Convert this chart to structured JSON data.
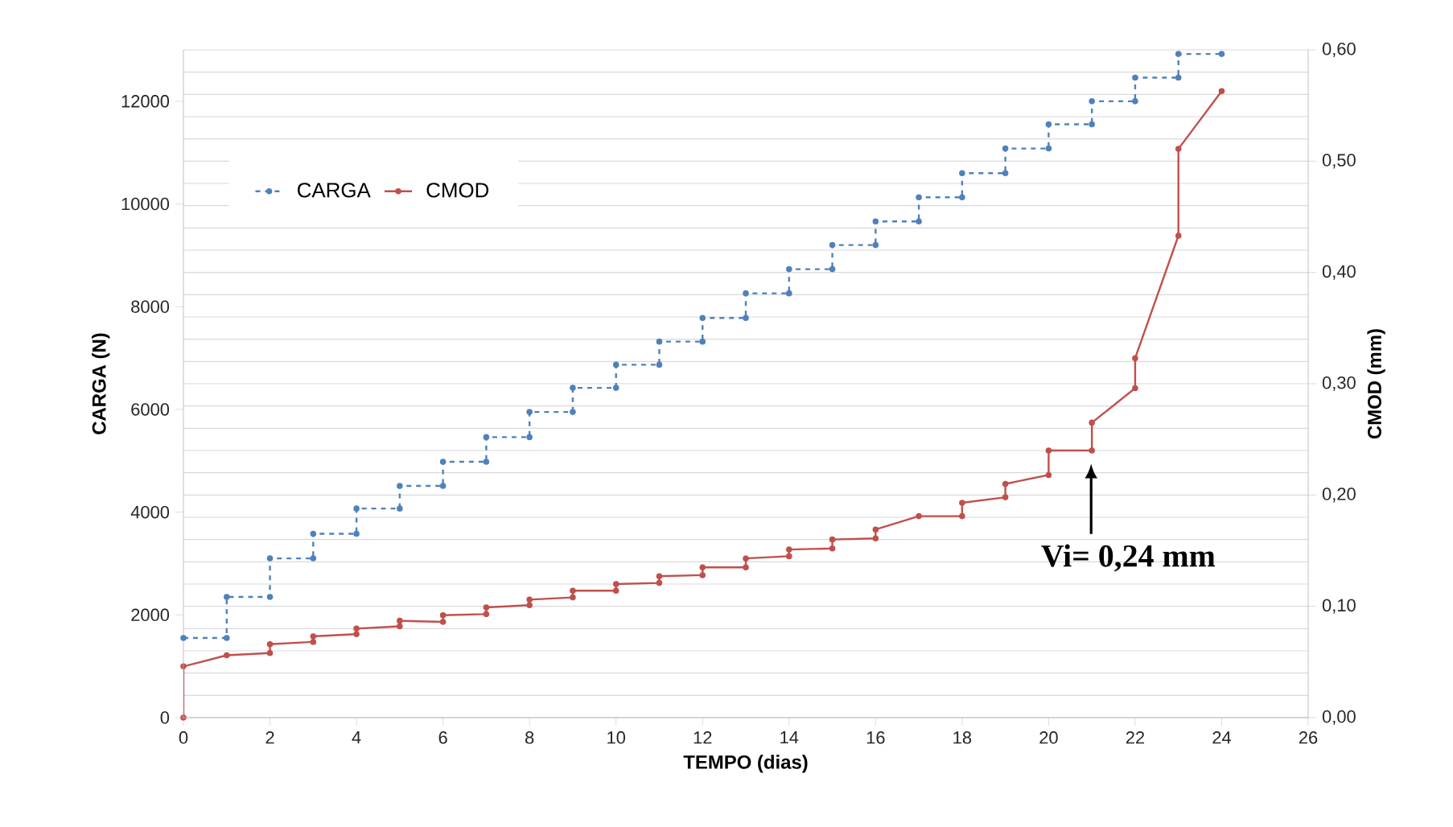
{
  "chart_data": {
    "type": "line",
    "xlabel": "TEMPO (dias)",
    "ylabel": "CARGA (N)",
    "y2label": "CMOD (mm)",
    "xlim": [
      0,
      26
    ],
    "xticks": [
      0,
      2,
      4,
      6,
      8,
      10,
      12,
      14,
      16,
      18,
      20,
      22,
      24,
      26
    ],
    "ylim": [
      0,
      13000
    ],
    "yticks": [
      0,
      2000,
      4000,
      6000,
      8000,
      10000,
      12000
    ],
    "y2lim": [
      0,
      0.6
    ],
    "y2ticks": [
      {
        "value": 0,
        "label": "0,00"
      },
      {
        "value": 0.1,
        "label": "0,10"
      },
      {
        "value": 0.2,
        "label": "0,20"
      },
      {
        "value": 0.3,
        "label": "0,30"
      },
      {
        "value": 0.4,
        "label": "0,40"
      },
      {
        "value": 0.5,
        "label": "0,50"
      },
      {
        "value": 0.6,
        "label": "0,60"
      }
    ],
    "grid": "y",
    "legend": "top left",
    "marker": "circle",
    "series": [
      {
        "name": "CARGA",
        "color": "#4f81bd",
        "line_style": "dashed",
        "x": [
          0,
          1,
          1,
          2,
          2,
          3,
          3,
          4,
          4,
          5,
          5,
          6,
          6,
          7,
          7,
          8,
          8,
          9,
          9,
          10,
          10,
          11,
          11,
          12,
          12,
          13,
          13,
          14,
          14,
          15,
          15,
          16,
          16,
          17,
          17,
          18,
          18,
          19,
          19,
          20,
          20,
          21,
          21,
          22,
          22,
          23,
          23,
          24
        ],
        "values": [
          1550,
          1550,
          2350,
          2350,
          3100,
          3100,
          3580,
          3580,
          4070,
          4070,
          4510,
          4510,
          4980,
          4980,
          5460,
          5460,
          5950,
          5950,
          6420,
          6420,
          6870,
          6870,
          7320,
          7320,
          7780,
          7780,
          8260,
          8260,
          8730,
          8730,
          9200,
          9200,
          9660,
          9660,
          10130,
          10130,
          10600,
          10600,
          11080,
          11080,
          11550,
          11550,
          12000,
          12000,
          12460,
          12460,
          12920,
          12920
        ]
      },
      {
        "name": "CMOD",
        "color": "#c0504d",
        "line_style": "solid",
        "axis": "y2",
        "x": [
          0,
          0,
          1,
          2,
          2,
          3,
          3,
          4,
          4,
          5,
          5,
          6,
          6,
          7,
          7,
          8,
          8,
          9,
          9,
          10,
          10,
          11,
          11,
          12,
          12,
          13,
          13,
          14,
          14,
          15,
          15,
          16,
          16,
          17,
          18,
          18,
          19,
          19,
          20,
          20,
          21,
          21,
          22,
          22,
          23,
          23,
          24
        ],
        "values": [
          0,
          0.046,
          0.056,
          0.058,
          0.066,
          0.068,
          0.073,
          0.075,
          0.08,
          0.082,
          0.087,
          0.086,
          0.092,
          0.093,
          0.099,
          0.101,
          0.106,
          0.108,
          0.114,
          0.114,
          0.12,
          0.121,
          0.127,
          0.128,
          0.135,
          0.135,
          0.143,
          0.145,
          0.151,
          0.152,
          0.16,
          0.161,
          0.169,
          0.181,
          0.181,
          0.193,
          0.198,
          0.21,
          0.218,
          0.24,
          0.24,
          0.265,
          0.296,
          0.323,
          0.433,
          0.511,
          0.563
        ]
      }
    ],
    "annotations": [
      "Vi= 0,24 mm"
    ]
  }
}
